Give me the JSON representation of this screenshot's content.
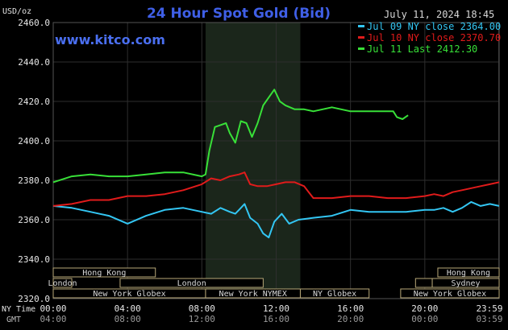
{
  "chart_data": {
    "type": "line",
    "title": "24 Hour Spot Gold (Bid)",
    "watermark": "www.kitco.com",
    "date_label": "July 11, 2024 18:45",
    "ylabel": "USD/oz",
    "ylim": [
      2320,
      2460
    ],
    "y_ticks": [
      "2460.0",
      "2440.0",
      "2420.0",
      "2400.0",
      "2380.0",
      "2360.0",
      "2340.0",
      "2320.0"
    ],
    "xlim": [
      0,
      24
    ],
    "x_axis_label_primary": "NY Time",
    "x_axis_label_secondary": "GMT",
    "x_ticks_primary": [
      "00:00",
      "04:00",
      "08:00",
      "12:00",
      "16:00",
      "20:00",
      "23:59"
    ],
    "x_ticks_secondary": [
      "04:00",
      "08:00",
      "12:00",
      "16:00",
      "20:00",
      "00:00",
      "03:59"
    ],
    "x_ticks_hours": [
      0,
      4,
      8,
      12,
      16,
      20,
      23.98
    ],
    "shaded_region_hours": [
      8.2,
      13.3
    ],
    "grid": true,
    "legend_position": "top-right",
    "series": [
      {
        "name": "Jul 09 NY close 2364.00",
        "color": "#33c6f3",
        "x": [
          0,
          1,
          2,
          3,
          4,
          5,
          6,
          7,
          8,
          8.5,
          9,
          9.5,
          9.8,
          10,
          10.3,
          10.6,
          11,
          11.3,
          11.6,
          11.9,
          12.3,
          12.7,
          13.2,
          14,
          15,
          16,
          17,
          18,
          19,
          20,
          20.5,
          21,
          21.5,
          22,
          22.5,
          23,
          23.5,
          24
        ],
        "y": [
          2367,
          2366,
          2364,
          2362,
          2358,
          2362,
          2365,
          2366,
          2364,
          2363,
          2366,
          2364,
          2363,
          2365,
          2368,
          2361,
          2358,
          2353,
          2351,
          2359,
          2363,
          2358,
          2360,
          2361,
          2362,
          2365,
          2364,
          2364,
          2364,
          2365,
          2365,
          2366,
          2364,
          2366,
          2369,
          2367,
          2368,
          2367
        ]
      },
      {
        "name": "Jul 10 NY close 2370.70",
        "color": "#e01b1b",
        "x": [
          0,
          1,
          2,
          3,
          4,
          5,
          6,
          7,
          8,
          8.5,
          9,
          9.5,
          10,
          10.3,
          10.6,
          11,
          11.5,
          12,
          12.5,
          13,
          13.5,
          14,
          15,
          16,
          17,
          18,
          19,
          20,
          20.5,
          21,
          21.5,
          22,
          22.5,
          23,
          23.5,
          24
        ],
        "y": [
          2367,
          2368,
          2370,
          2370,
          2372,
          2372,
          2373,
          2375,
          2378,
          2381,
          2380,
          2382,
          2383,
          2384,
          2378,
          2377,
          2377,
          2378,
          2379,
          2379,
          2377,
          2371,
          2371,
          2372,
          2372,
          2371,
          2371,
          2372,
          2373,
          2372,
          2374,
          2375,
          2376,
          2377,
          2378,
          2379
        ]
      },
      {
        "name": "Jul 11 Last 2412.30",
        "color": "#38e038",
        "x": [
          0,
          1,
          2,
          3,
          4,
          5,
          6,
          7,
          8,
          8.2,
          8.4,
          8.7,
          9,
          9.3,
          9.5,
          9.8,
          10.1,
          10.4,
          10.7,
          11,
          11.3,
          11.6,
          11.9,
          12.2,
          12.5,
          13,
          13.5,
          14,
          14.5,
          15,
          15.5,
          16,
          16.5,
          17,
          17.5,
          18,
          18.3,
          18.5,
          18.8,
          19.1
        ],
        "y": [
          2379,
          2382,
          2383,
          2382,
          2382,
          2383,
          2384,
          2384,
          2382,
          2383,
          2395,
          2407,
          2408,
          2409,
          2404,
          2399,
          2410,
          2409,
          2402,
          2409,
          2418,
          2422,
          2426,
          2420,
          2418,
          2416,
          2416,
          2415,
          2416,
          2417,
          2416,
          2415,
          2415,
          2415,
          2415,
          2415,
          2415,
          2412,
          2411,
          2413
        ]
      }
    ],
    "sessions": [
      {
        "label": "Hong Kong",
        "start": 0,
        "end": 5.5,
        "row": 0
      },
      {
        "label": "London",
        "start": 0,
        "end": 1,
        "row": 1
      },
      {
        "label": "London",
        "start": 3.6,
        "end": 11.3,
        "row": 1
      },
      {
        "label": "New York Globex",
        "start": 0,
        "end": 8.2,
        "row": 2
      },
      {
        "label": "New York NYMEX",
        "start": 8.2,
        "end": 13.3,
        "row": 2
      },
      {
        "label": "NY Globex",
        "start": 13.3,
        "end": 17,
        "row": 2
      },
      {
        "label": "Hong Kong",
        "start": 20.7,
        "end": 24,
        "row": 0
      },
      {
        "label": "",
        "start": 19.5,
        "end": 20.4,
        "row": 1
      },
      {
        "label": "Sydney",
        "start": 20.4,
        "end": 24,
        "row": 1
      },
      {
        "label": "New York Globex",
        "start": 18.7,
        "end": 24,
        "row": 2
      }
    ]
  }
}
